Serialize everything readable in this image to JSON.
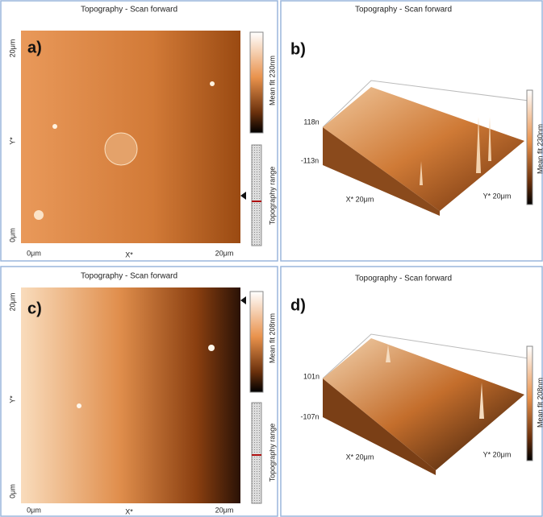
{
  "panels": [
    {
      "label": "a)",
      "title": "Topography - Scan forward",
      "y_axis": {
        "label": "Y*",
        "ticks": [
          "20μm",
          "0μm"
        ]
      },
      "x_axis": {
        "label": "X*",
        "ticks": [
          "0μm",
          "20μm"
        ]
      },
      "colorbar": "Mean fit 230nm",
      "range": "Topography range"
    },
    {
      "label": "b)",
      "title": "Topography - Scan forward",
      "z_ticks": [
        "118n",
        "-113n"
      ],
      "x_axis": "X* 20μm",
      "y_axis": "Y* 20μm",
      "colorbar": "Mean fit 230nm"
    },
    {
      "label": "c)",
      "title": "Topography - Scan forward",
      "y_axis": {
        "label": "Y*",
        "ticks": [
          "20μm",
          "0μm"
        ]
      },
      "x_axis": {
        "label": "X*",
        "ticks": [
          "0μm",
          "20μm"
        ]
      },
      "colorbar": "Mean fit 208nm",
      "range": "Topography range"
    },
    {
      "label": "d)",
      "title": "Topography - Scan forward",
      "z_ticks": [
        "101n",
        "-107n"
      ],
      "x_axis": "X* 20μm",
      "y_axis": "Y* 20μm",
      "colorbar": "Mean fit 208nm"
    }
  ]
}
